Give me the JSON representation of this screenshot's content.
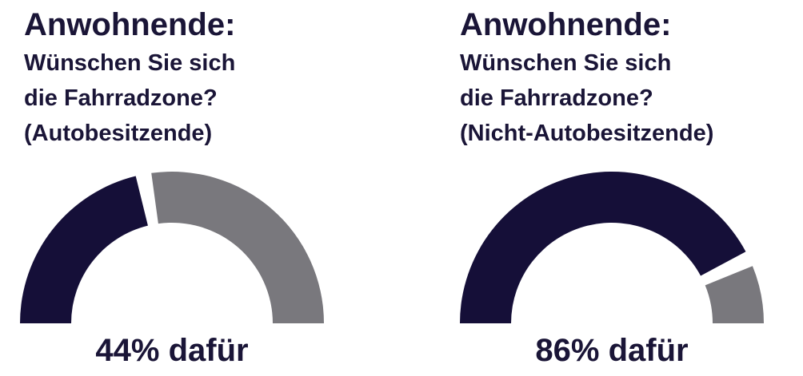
{
  "chart_data": [
    {
      "type": "half-donut",
      "title": "Anwohnende:",
      "subtitle": [
        "Wünschen Sie sich",
        "die Fahrradzone?",
        "(Autobesitzende)"
      ],
      "values": [
        44,
        56
      ],
      "colors": [
        "#150f38",
        "#79787d"
      ],
      "center_label": "44% dafür"
    },
    {
      "type": "half-donut",
      "title": "Anwohnende:",
      "subtitle": [
        "Wünschen Sie sich",
        "die Fahrradzone?",
        "(Nicht-Autobesitzende)"
      ],
      "values": [
        86,
        14
      ],
      "colors": [
        "#150f38",
        "#79787d"
      ],
      "center_label": "86% dafür"
    }
  ]
}
